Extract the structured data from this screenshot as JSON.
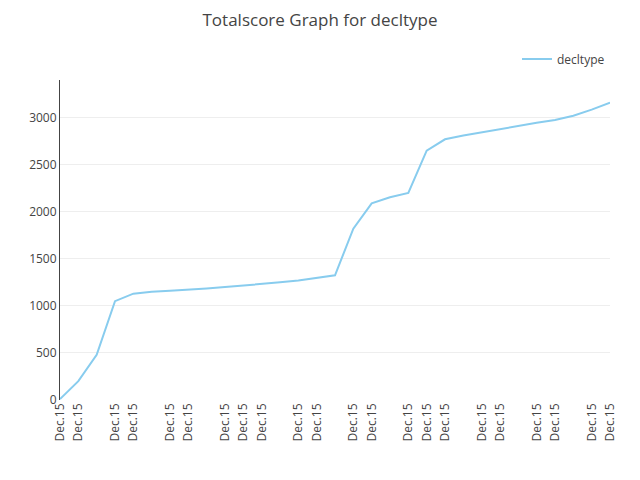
{
  "chart_data": {
    "type": "line",
    "title": "Totalscore Graph for decltype",
    "categories": [
      "Dec.15",
      "Dec.15",
      null,
      "Dec.15",
      "Dec.15",
      null,
      "Dec.15",
      "Dec.15",
      null,
      "Dec.15",
      "Dec.15",
      "Dec.15",
      null,
      "Dec.15",
      "Dec.15",
      null,
      "Dec.15",
      "Dec.15",
      null,
      "Dec.15",
      "Dec.15",
      "Dec.15",
      null,
      "Dec.15",
      "Dec.15",
      null,
      "Dec.15",
      "Dec.15",
      null,
      "Dec.15",
      "Dec.15"
    ],
    "series": [
      {
        "name": "decltype",
        "color": "#88ccee",
        "values": [
          10,
          200,
          480,
          1050,
          1130,
          1150,
          1160,
          1170,
          1185,
          1200,
          1215,
          1235,
          1250,
          1270,
          1300,
          1325,
          1820,
          2090,
          2155,
          2200,
          2650,
          2770,
          2810,
          2845,
          2880,
          2915,
          2945,
          2975,
          3020,
          3085,
          3160
        ]
      }
    ],
    "ylim": [
      0,
      3400
    ],
    "yticks": [
      0,
      500,
      1000,
      1500,
      2000,
      2500,
      3000
    ],
    "grid": true,
    "legend": "upper right"
  }
}
